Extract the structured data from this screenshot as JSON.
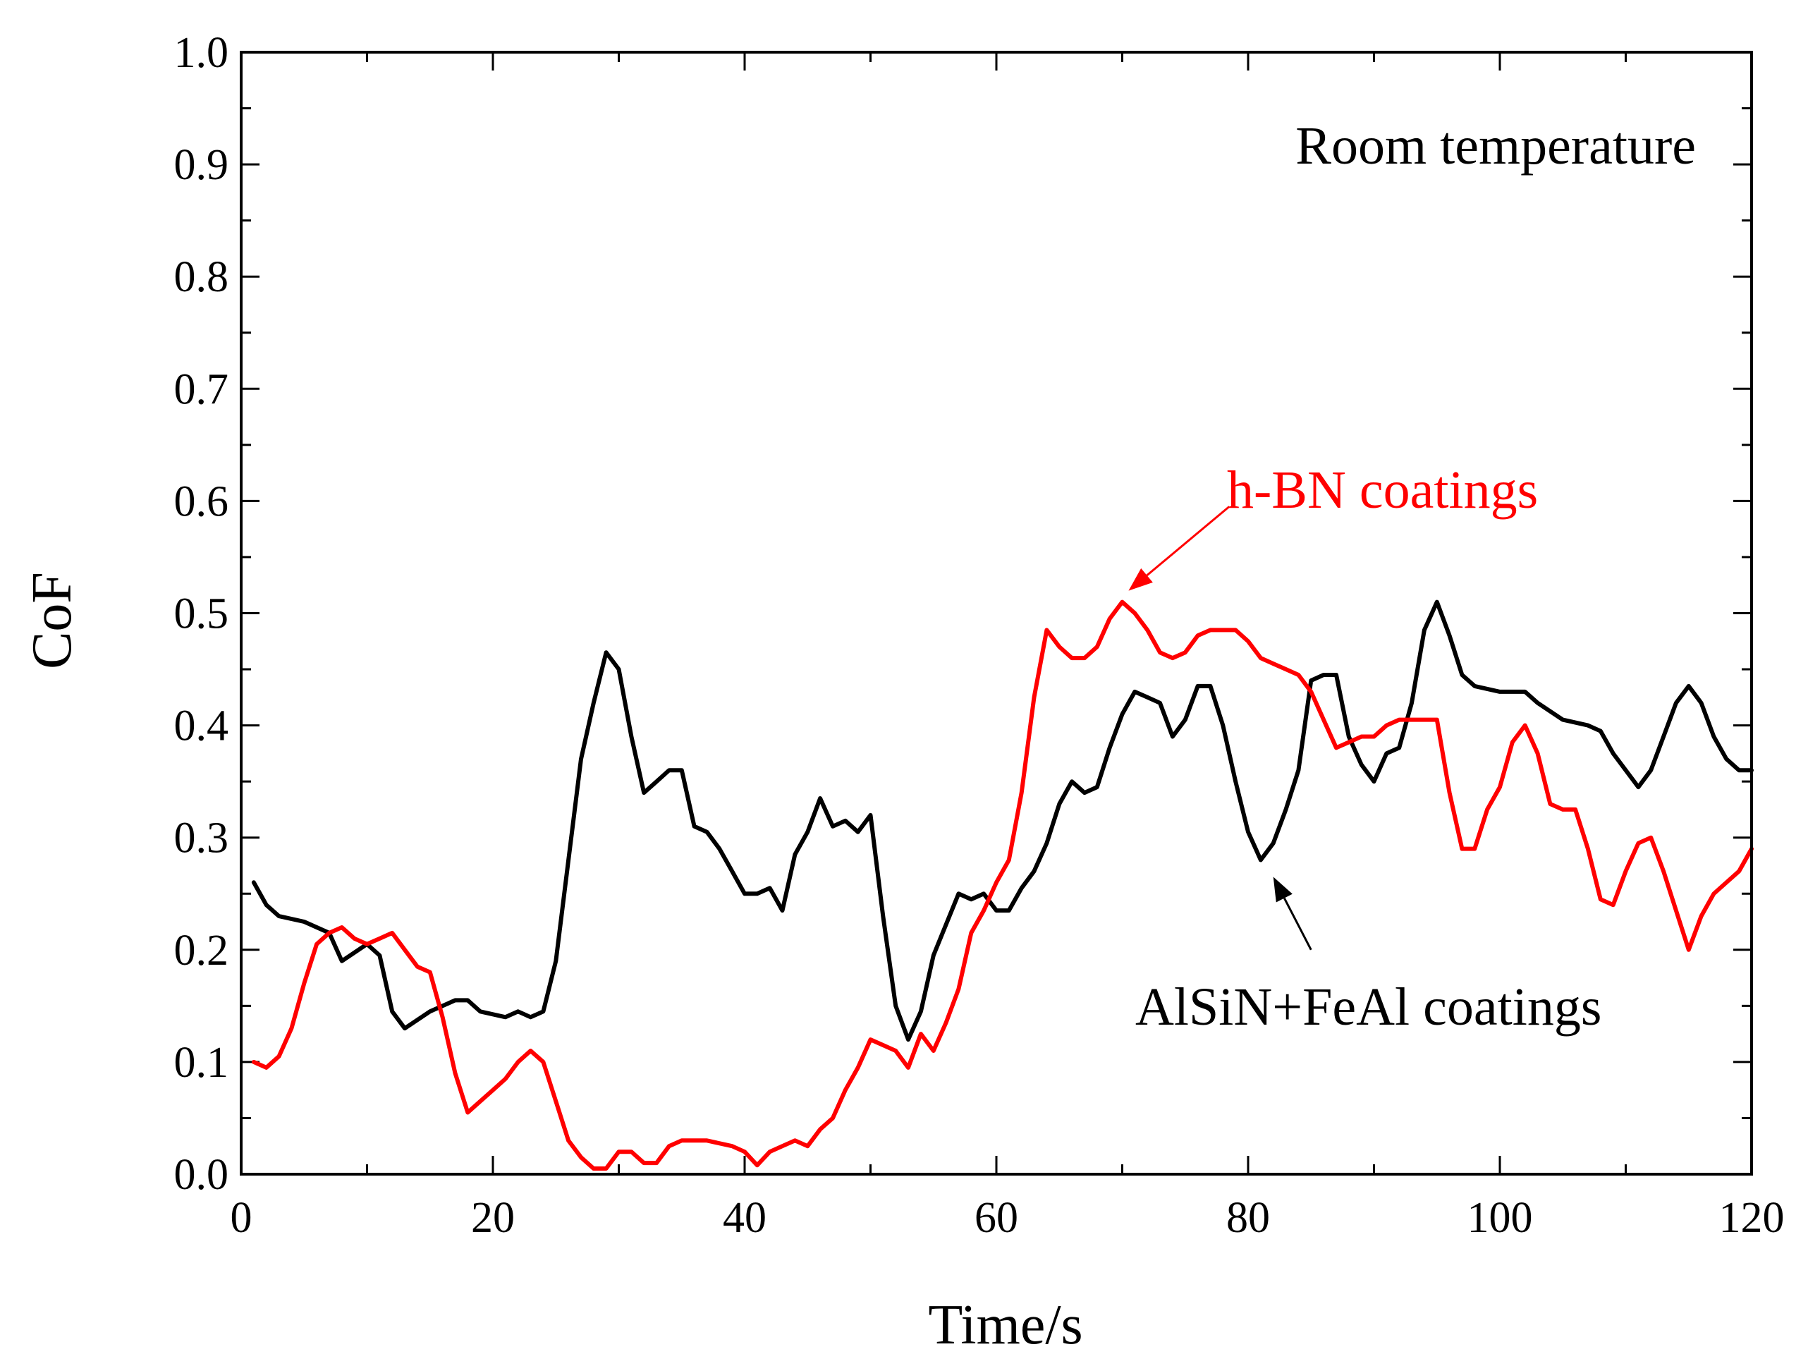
{
  "chart_data": {
    "type": "line",
    "title": "",
    "xlabel": "Time/s",
    "ylabel": "CoF",
    "xlim": [
      0,
      120
    ],
    "ylim": [
      0.0,
      1.0
    ],
    "x_ticks": [
      0,
      20,
      40,
      60,
      80,
      100,
      120
    ],
    "y_ticks": [
      0.0,
      0.1,
      0.2,
      0.3,
      0.4,
      0.5,
      0.6,
      0.7,
      0.8,
      0.9,
      1.0
    ],
    "x_tick_labels": [
      "0",
      "20",
      "40",
      "60",
      "80",
      "100",
      "120"
    ],
    "y_tick_labels": [
      "0.0",
      "0.1",
      "0.2",
      "0.3",
      "0.4",
      "0.5",
      "0.6",
      "0.7",
      "0.8",
      "0.9",
      "1.0"
    ],
    "grid": false,
    "series": [
      {
        "name": "AlSiN+FeAl coatings",
        "color": "#000000",
        "points": [
          [
            1,
            0.26
          ],
          [
            2,
            0.24
          ],
          [
            3,
            0.23
          ],
          [
            5,
            0.225
          ],
          [
            7,
            0.215
          ],
          [
            8,
            0.19
          ],
          [
            10,
            0.205
          ],
          [
            11,
            0.195
          ],
          [
            12,
            0.145
          ],
          [
            13,
            0.13
          ],
          [
            15,
            0.145
          ],
          [
            17,
            0.155
          ],
          [
            18,
            0.155
          ],
          [
            19,
            0.145
          ],
          [
            21,
            0.14
          ],
          [
            22,
            0.145
          ],
          [
            23,
            0.14
          ],
          [
            24,
            0.145
          ],
          [
            25,
            0.19
          ],
          [
            27,
            0.37
          ],
          [
            28,
            0.42
          ],
          [
            29,
            0.465
          ],
          [
            30,
            0.45
          ],
          [
            31,
            0.39
          ],
          [
            32,
            0.34
          ],
          [
            33,
            0.35
          ],
          [
            34,
            0.36
          ],
          [
            35,
            0.36
          ],
          [
            36,
            0.31
          ],
          [
            37,
            0.305
          ],
          [
            38,
            0.29
          ],
          [
            39,
            0.27
          ],
          [
            40,
            0.25
          ],
          [
            41,
            0.25
          ],
          [
            42,
            0.255
          ],
          [
            43,
            0.235
          ],
          [
            44,
            0.285
          ],
          [
            45,
            0.305
          ],
          [
            46,
            0.335
          ],
          [
            47,
            0.31
          ],
          [
            48,
            0.315
          ],
          [
            49,
            0.305
          ],
          [
            50,
            0.32
          ],
          [
            51,
            0.23
          ],
          [
            52,
            0.15
          ],
          [
            53,
            0.12
          ],
          [
            54,
            0.145
          ],
          [
            55,
            0.195
          ],
          [
            57,
            0.25
          ],
          [
            58,
            0.245
          ],
          [
            59,
            0.25
          ],
          [
            60,
            0.235
          ],
          [
            61,
            0.235
          ],
          [
            62,
            0.255
          ],
          [
            63,
            0.27
          ],
          [
            64,
            0.295
          ],
          [
            65,
            0.33
          ],
          [
            66,
            0.35
          ],
          [
            67,
            0.34
          ],
          [
            68,
            0.345
          ],
          [
            69,
            0.38
          ],
          [
            70,
            0.41
          ],
          [
            71,
            0.43
          ],
          [
            72,
            0.425
          ],
          [
            73,
            0.42
          ],
          [
            74,
            0.39
          ],
          [
            75,
            0.405
          ],
          [
            76,
            0.435
          ],
          [
            77,
            0.435
          ],
          [
            78,
            0.4
          ],
          [
            79,
            0.35
          ],
          [
            80,
            0.305
          ],
          [
            81,
            0.28
          ],
          [
            82,
            0.295
          ],
          [
            83,
            0.325
          ],
          [
            84,
            0.36
          ],
          [
            85,
            0.44
          ],
          [
            86,
            0.445
          ],
          [
            87,
            0.445
          ],
          [
            88,
            0.39
          ],
          [
            89,
            0.365
          ],
          [
            90,
            0.35
          ],
          [
            91,
            0.375
          ],
          [
            92,
            0.38
          ],
          [
            93,
            0.42
          ],
          [
            94,
            0.485
          ],
          [
            95,
            0.51
          ],
          [
            96,
            0.48
          ],
          [
            97,
            0.445
          ],
          [
            98,
            0.435
          ],
          [
            100,
            0.43
          ],
          [
            102,
            0.43
          ],
          [
            103,
            0.42
          ],
          [
            105,
            0.405
          ],
          [
            107,
            0.4
          ],
          [
            108,
            0.395
          ],
          [
            109,
            0.375
          ],
          [
            111,
            0.345
          ],
          [
            112,
            0.36
          ],
          [
            113,
            0.39
          ],
          [
            114,
            0.42
          ],
          [
            115,
            0.435
          ],
          [
            116,
            0.42
          ],
          [
            117,
            0.39
          ],
          [
            118,
            0.37
          ],
          [
            119,
            0.36
          ],
          [
            120,
            0.36
          ]
        ]
      },
      {
        "name": "h-BN coatings",
        "color": "#ff0000",
        "points": [
          [
            1,
            0.1
          ],
          [
            2,
            0.095
          ],
          [
            3,
            0.105
          ],
          [
            4,
            0.13
          ],
          [
            5,
            0.17
          ],
          [
            6,
            0.205
          ],
          [
            7,
            0.215
          ],
          [
            8,
            0.22
          ],
          [
            9,
            0.21
          ],
          [
            10,
            0.205
          ],
          [
            11,
            0.21
          ],
          [
            12,
            0.215
          ],
          [
            13,
            0.2
          ],
          [
            14,
            0.185
          ],
          [
            15,
            0.18
          ],
          [
            16,
            0.14
          ],
          [
            17,
            0.09
          ],
          [
            18,
            0.055
          ],
          [
            19,
            0.065
          ],
          [
            20,
            0.075
          ],
          [
            21,
            0.085
          ],
          [
            22,
            0.1
          ],
          [
            23,
            0.11
          ],
          [
            24,
            0.1
          ],
          [
            25,
            0.065
          ],
          [
            26,
            0.03
          ],
          [
            27,
            0.015
          ],
          [
            28,
            0.005
          ],
          [
            29,
            0.005
          ],
          [
            30,
            0.02
          ],
          [
            31,
            0.02
          ],
          [
            32,
            0.01
          ],
          [
            33,
            0.01
          ],
          [
            34,
            0.025
          ],
          [
            35,
            0.03
          ],
          [
            37,
            0.03
          ],
          [
            39,
            0.025
          ],
          [
            40,
            0.02
          ],
          [
            41,
            0.008
          ],
          [
            42,
            0.02
          ],
          [
            43,
            0.025
          ],
          [
            44,
            0.03
          ],
          [
            45,
            0.025
          ],
          [
            46,
            0.04
          ],
          [
            47,
            0.05
          ],
          [
            48,
            0.075
          ],
          [
            49,
            0.095
          ],
          [
            50,
            0.12
          ],
          [
            51,
            0.115
          ],
          [
            52,
            0.11
          ],
          [
            53,
            0.095
          ],
          [
            54,
            0.125
          ],
          [
            55,
            0.11
          ],
          [
            56,
            0.135
          ],
          [
            57,
            0.165
          ],
          [
            58,
            0.215
          ],
          [
            59,
            0.235
          ],
          [
            60,
            0.26
          ],
          [
            61,
            0.28
          ],
          [
            62,
            0.34
          ],
          [
            63,
            0.425
          ],
          [
            64,
            0.485
          ],
          [
            65,
            0.47
          ],
          [
            66,
            0.46
          ],
          [
            67,
            0.46
          ],
          [
            68,
            0.47
          ],
          [
            69,
            0.495
          ],
          [
            70,
            0.51
          ],
          [
            71,
            0.5
          ],
          [
            72,
            0.485
          ],
          [
            73,
            0.465
          ],
          [
            74,
            0.46
          ],
          [
            75,
            0.465
          ],
          [
            76,
            0.48
          ],
          [
            77,
            0.485
          ],
          [
            78,
            0.485
          ],
          [
            79,
            0.485
          ],
          [
            80,
            0.475
          ],
          [
            81,
            0.46
          ],
          [
            82,
            0.455
          ],
          [
            83,
            0.45
          ],
          [
            84,
            0.445
          ],
          [
            85,
            0.43
          ],
          [
            86,
            0.405
          ],
          [
            87,
            0.38
          ],
          [
            88,
            0.385
          ],
          [
            89,
            0.39
          ],
          [
            90,
            0.39
          ],
          [
            91,
            0.4
          ],
          [
            92,
            0.405
          ],
          [
            93,
            0.405
          ],
          [
            94,
            0.405
          ],
          [
            95,
            0.405
          ],
          [
            96,
            0.34
          ],
          [
            97,
            0.29
          ],
          [
            98,
            0.29
          ],
          [
            99,
            0.325
          ],
          [
            100,
            0.345
          ],
          [
            101,
            0.385
          ],
          [
            102,
            0.4
          ],
          [
            103,
            0.375
          ],
          [
            104,
            0.33
          ],
          [
            105,
            0.325
          ],
          [
            106,
            0.325
          ],
          [
            107,
            0.29
          ],
          [
            108,
            0.245
          ],
          [
            109,
            0.24
          ],
          [
            110,
            0.27
          ],
          [
            111,
            0.295
          ],
          [
            112,
            0.3
          ],
          [
            113,
            0.27
          ],
          [
            114,
            0.235
          ],
          [
            115,
            0.2
          ],
          [
            116,
            0.23
          ],
          [
            117,
            0.25
          ],
          [
            118,
            0.26
          ],
          [
            119,
            0.27
          ],
          [
            120,
            0.29
          ]
        ]
      }
    ],
    "annotations": [
      {
        "text": "Room temperature",
        "color": "#000000"
      },
      {
        "text": "h-BN coatings",
        "color": "#ff0000"
      },
      {
        "text": "AlSiN+FeAl coatings",
        "color": "#000000"
      }
    ],
    "arrows": [
      {
        "color": "#ff0000",
        "from": [
          78.5,
          0.595
        ],
        "to": [
          70.5,
          0.52
        ]
      },
      {
        "color": "#000000",
        "from": [
          85,
          0.2
        ],
        "to": [
          82,
          0.265
        ]
      }
    ]
  }
}
